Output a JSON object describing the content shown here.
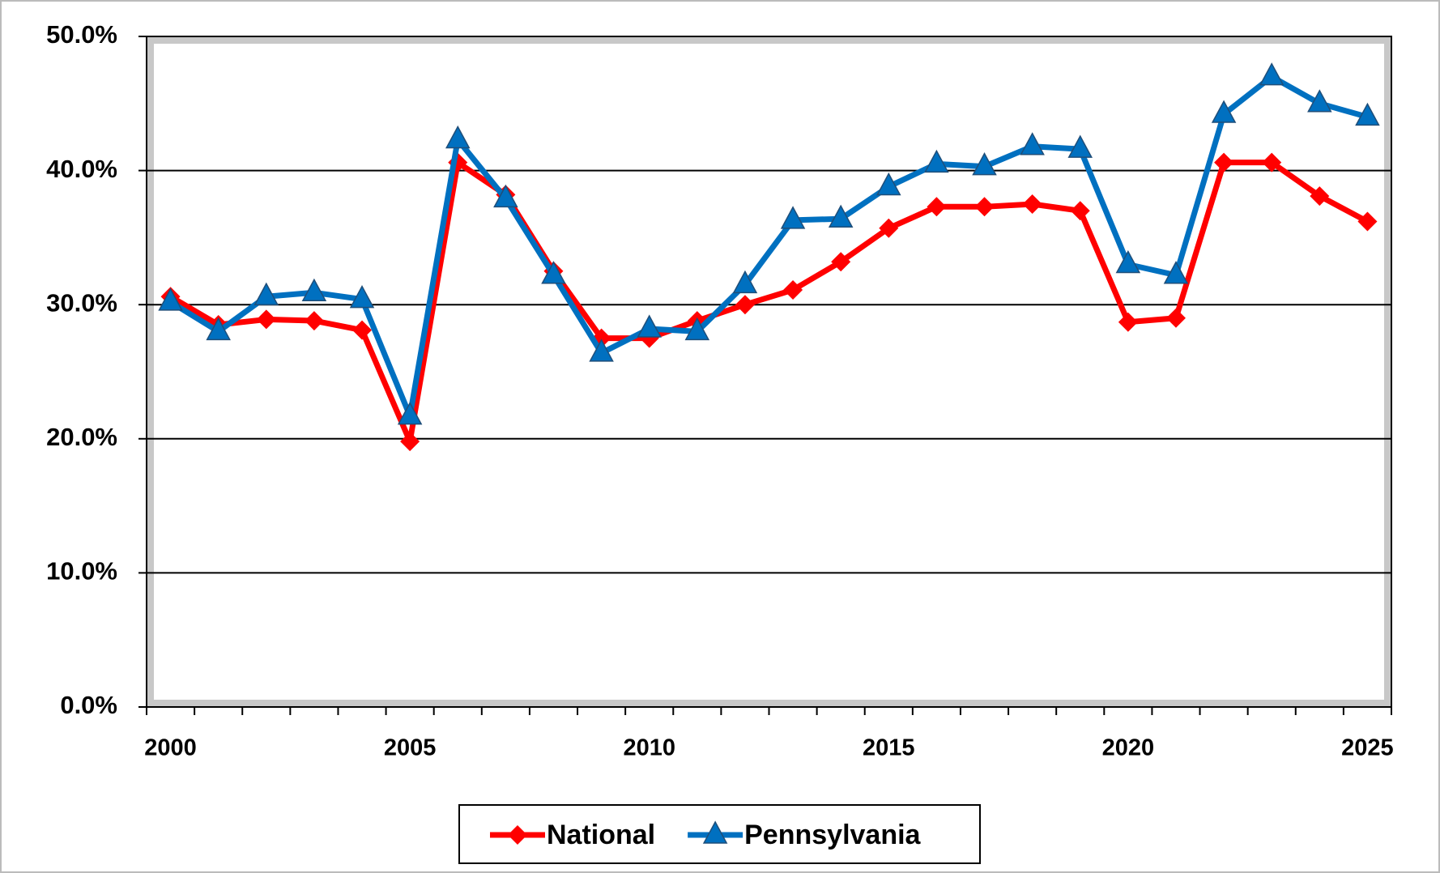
{
  "chart_data": {
    "type": "line",
    "x": [
      2000,
      2001,
      2002,
      2003,
      2004,
      2005,
      2006,
      2007,
      2008,
      2009,
      2010,
      2011,
      2012,
      2013,
      2014,
      2015,
      2016,
      2017,
      2018,
      2019,
      2020,
      2021,
      2022,
      2023,
      2024,
      2025
    ],
    "series": [
      {
        "name": "National",
        "color": "#ff0000",
        "marker": "diamond",
        "values": [
          30.6,
          28.5,
          28.9,
          28.8,
          28.1,
          19.8,
          40.6,
          38.2,
          32.5,
          27.5,
          27.5,
          28.8,
          30.0,
          31.1,
          33.2,
          35.7,
          37.3,
          37.3,
          37.5,
          37.0,
          28.7,
          29.0,
          40.6,
          40.6,
          38.1,
          36.2
        ]
      },
      {
        "name": "Pennsylvania",
        "color": "#0070c0",
        "marker": "triangle",
        "values": [
          30.2,
          28.0,
          30.6,
          30.9,
          30.4,
          21.7,
          42.3,
          37.9,
          32.2,
          26.4,
          28.2,
          28.0,
          31.5,
          36.3,
          36.4,
          38.8,
          40.5,
          40.3,
          41.8,
          41.6,
          33.0,
          32.2,
          44.2,
          47.0,
          45.0,
          44.0
        ]
      }
    ],
    "xlim": [
      1999.5,
      2025.5
    ],
    "xticks": [
      2000,
      2005,
      2010,
      2015,
      2020,
      2025
    ],
    "ylim": [
      0,
      50
    ],
    "yticks": [
      {
        "value": 0,
        "label": "0.0%"
      },
      {
        "value": 10,
        "label": "10.0%"
      },
      {
        "value": 20,
        "label": "20.0%"
      },
      {
        "value": 30,
        "label": "30.0%"
      },
      {
        "value": 40,
        "label": "40.0%"
      },
      {
        "value": 50,
        "label": "50.0%"
      }
    ],
    "grid": true,
    "legend": "bottom"
  }
}
